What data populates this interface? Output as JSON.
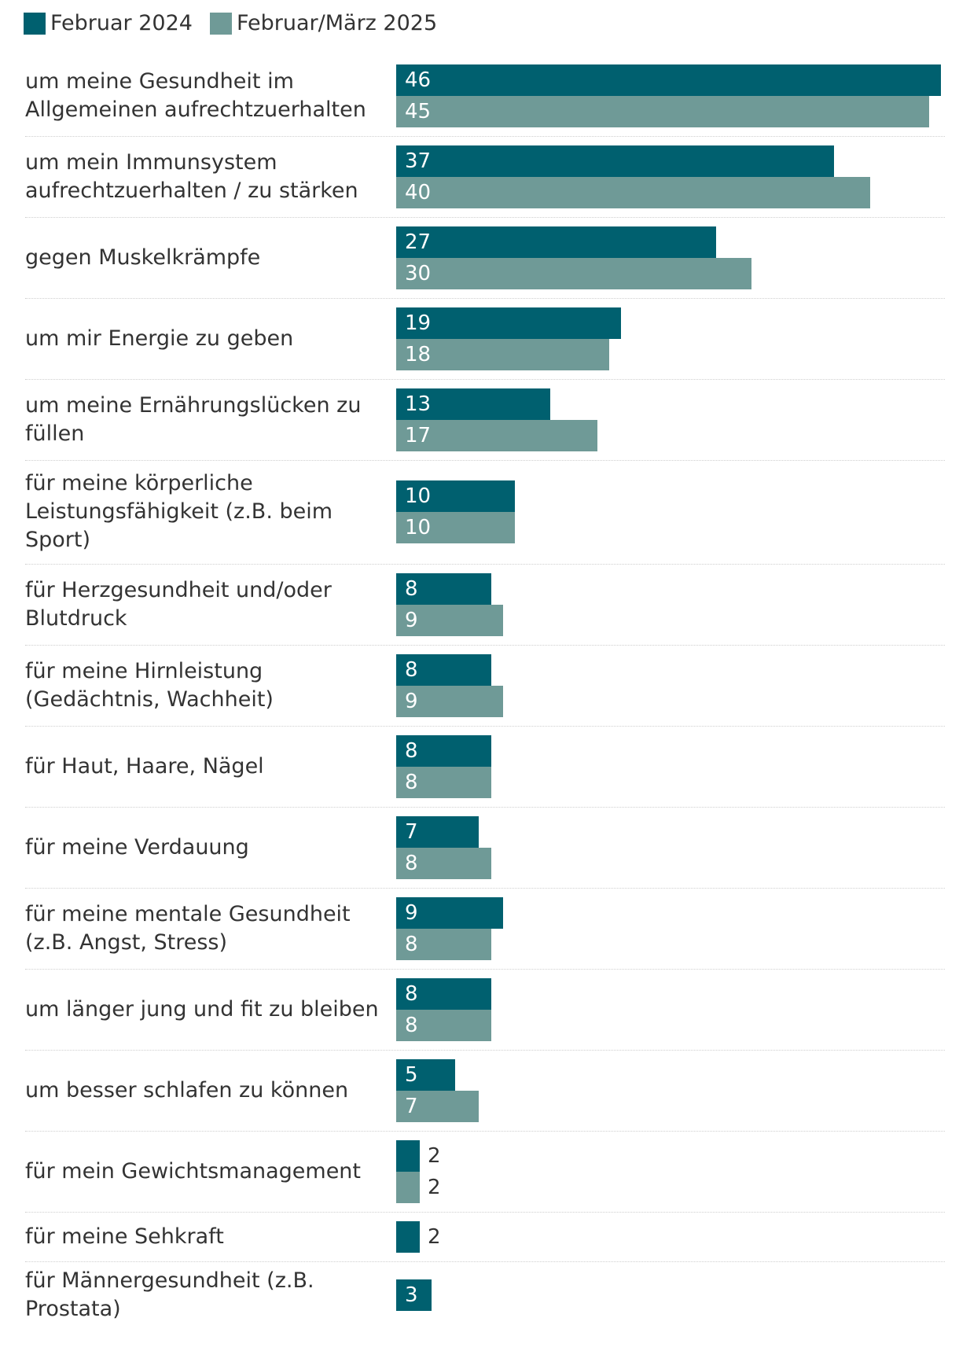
{
  "colors": {
    "series_2024": "#00606f",
    "series_2025": "#6f9a97",
    "inside_label": "#ffffff",
    "outside_label": "#333333"
  },
  "legend": [
    {
      "label": "Februar 2024",
      "color": "#00606f"
    },
    {
      "label": "Februar/März 2025",
      "color": "#6f9a97"
    }
  ],
  "chart_data": {
    "type": "bar",
    "orientation": "horizontal",
    "categories": [
      "um meine Gesundheit im Allgemeinen aufrechtzuerhalten",
      "um mein Immunsystem aufrechtzuerhalten / zu stärken",
      "gegen Muskelkrämpfe",
      "um mir Energie zu geben",
      "um meine Ernährungslücken zu füllen",
      "für meine körperliche Leistungsfähigkeit (z.B. beim Sport)",
      "für Herzgesundheit und/oder Blutdruck",
      "für meine Hirnleistung (Gedächtnis, Wachheit)",
      "für Haut, Haare, Nägel",
      "für meine Verdauung",
      "für meine mentale Gesundheit (z.B. Angst, Stress)",
      "um länger jung und fit zu bleiben",
      "um besser schlafen zu können",
      "für mein Gewichtsmanagement",
      "für meine Sehkraft",
      "für Männergesundheit (z.B. Prostata)"
    ],
    "series": [
      {
        "name": "Februar 2024",
        "values": [
          46,
          37,
          27,
          19,
          13,
          10,
          8,
          8,
          8,
          7,
          9,
          8,
          5,
          2,
          2,
          3
        ]
      },
      {
        "name": "Februar/März 2025",
        "values": [
          45,
          40,
          30,
          18,
          17,
          10,
          9,
          9,
          8,
          8,
          8,
          8,
          7,
          2,
          null,
          null
        ]
      }
    ],
    "xlim": [
      0,
      46
    ],
    "grid": false,
    "legend_position": "top-left"
  }
}
